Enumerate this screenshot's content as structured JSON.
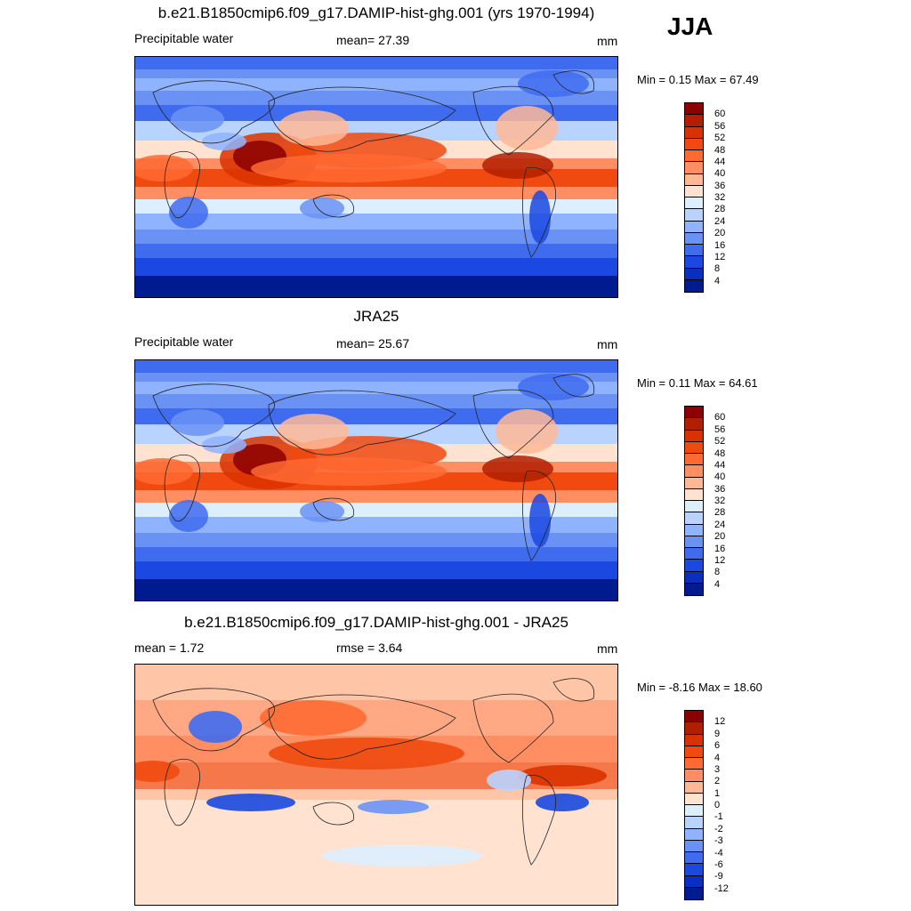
{
  "season": "JJA",
  "panels": [
    {
      "title": "b.e21.B1850cmip6.f09_g17.DAMIP-hist-ghg.001 (yrs 1970-1994)",
      "left_label": "Precipitable water",
      "center_label": "mean=  27.39",
      "units": "mm",
      "minmax": "Min =   0.15 Max =  67.49",
      "kind": "abs"
    },
    {
      "title": "JRA25",
      "left_label": "Precipitable water",
      "center_label": "mean=  25.67",
      "units": "mm",
      "minmax": "Min =   0.11 Max =  64.61",
      "kind": "abs"
    },
    {
      "title": "b.e21.B1850cmip6.f09_g17.DAMIP-hist-ghg.001 - JRA25",
      "left_label": "mean =   1.72",
      "center_label": "rmse =   3.64",
      "units": "mm",
      "minmax": "Min =  -8.16 Max =  18.60",
      "kind": "diff"
    }
  ],
  "colorbars": {
    "abs": {
      "labels": [
        "60",
        "56",
        "52",
        "48",
        "44",
        "40",
        "36",
        "32",
        "28",
        "24",
        "20",
        "16",
        "12",
        "8",
        "4"
      ],
      "colors": [
        "#8b0000",
        "#b21e00",
        "#d93200",
        "#f04a10",
        "#ff6a33",
        "#ff8f63",
        "#ffb896",
        "#ffe3d0",
        "#ddeeff",
        "#b9d3ff",
        "#8fb3ff",
        "#6a92f5",
        "#3f6bef",
        "#1a48e0",
        "#0a2ec0",
        "#001a8f"
      ]
    },
    "diff": {
      "labels": [
        "12",
        "9",
        "6",
        "4",
        "3",
        "2",
        "1",
        "0",
        "-1",
        "-2",
        "-3",
        "-4",
        "-6",
        "-9",
        "-12"
      ],
      "colors": [
        "#8b0000",
        "#b21e00",
        "#d93200",
        "#f04a10",
        "#ff6a33",
        "#ff8f63",
        "#ffb896",
        "#ffe3d0",
        "#ddeeff",
        "#b9d3ff",
        "#8fb3ff",
        "#6a92f5",
        "#3f6bef",
        "#1a48e0",
        "#0a2ec0",
        "#001a8f"
      ]
    }
  }
}
